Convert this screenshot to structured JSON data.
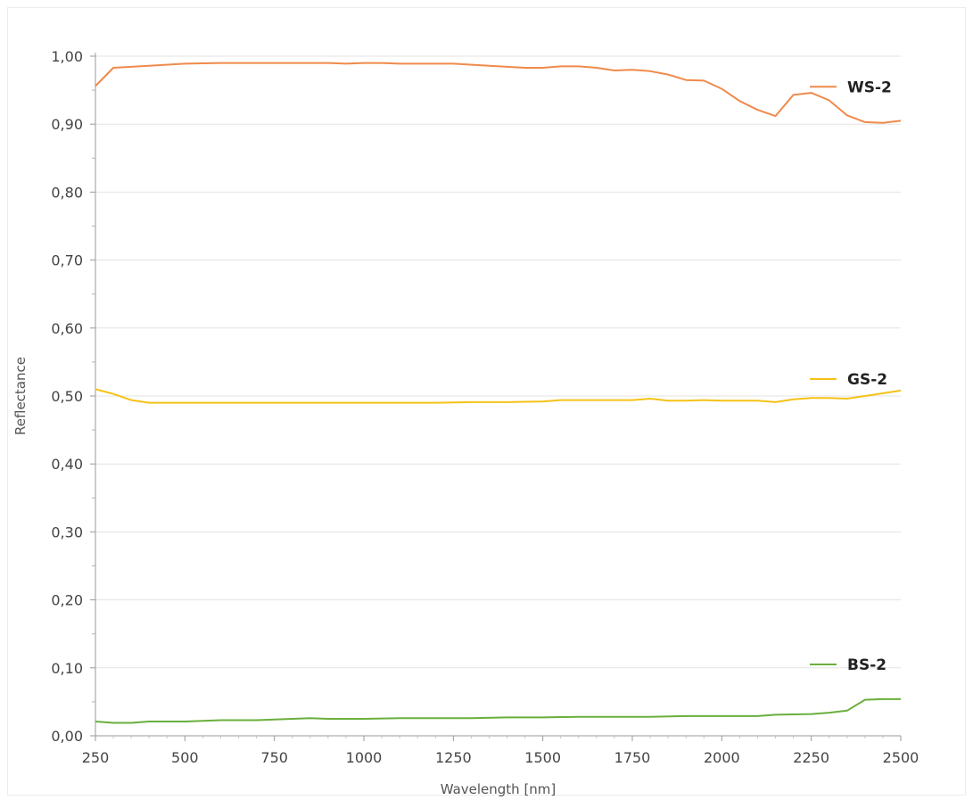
{
  "chart_data": {
    "type": "line",
    "title": "",
    "xlabel": "Wavelength [nm]",
    "ylabel": "Reflectance",
    "xlim": [
      250,
      2500
    ],
    "ylim": [
      0,
      1.0
    ],
    "x_ticks": [
      250,
      500,
      750,
      1000,
      1250,
      1500,
      1750,
      2000,
      2250,
      2500
    ],
    "x_tick_labels": [
      "250",
      "500",
      "750",
      "1000",
      "1250",
      "1500",
      "1750",
      "2000",
      "2250",
      "2500"
    ],
    "y_ticks": [
      0,
      0.1,
      0.2,
      0.3,
      0.4,
      0.5,
      0.6,
      0.7,
      0.8,
      0.9,
      1.0
    ],
    "y_tick_labels": [
      "0,00",
      "0,10",
      "0,20",
      "0,30",
      "0,40",
      "0,50",
      "0,60",
      "0,70",
      "0,80",
      "0,90",
      "1,00"
    ],
    "grid": "horizontal",
    "legend": "inline-right",
    "series": [
      {
        "name": "WS-2",
        "color": "#f08a4b",
        "points": [
          [
            250,
            0.956
          ],
          [
            300,
            0.983
          ],
          [
            400,
            0.986
          ],
          [
            500,
            0.989
          ],
          [
            600,
            0.99
          ],
          [
            700,
            0.99
          ],
          [
            800,
            0.99
          ],
          [
            900,
            0.99
          ],
          [
            950,
            0.989
          ],
          [
            1000,
            0.99
          ],
          [
            1050,
            0.99
          ],
          [
            1100,
            0.989
          ],
          [
            1200,
            0.989
          ],
          [
            1250,
            0.989
          ],
          [
            1350,
            0.986
          ],
          [
            1450,
            0.983
          ],
          [
            1500,
            0.983
          ],
          [
            1550,
            0.985
          ],
          [
            1600,
            0.985
          ],
          [
            1650,
            0.983
          ],
          [
            1700,
            0.979
          ],
          [
            1750,
            0.98
          ],
          [
            1800,
            0.978
          ],
          [
            1850,
            0.973
          ],
          [
            1900,
            0.965
          ],
          [
            1950,
            0.964
          ],
          [
            2000,
            0.952
          ],
          [
            2050,
            0.934
          ],
          [
            2100,
            0.921
          ],
          [
            2150,
            0.912
          ],
          [
            2200,
            0.943
          ],
          [
            2250,
            0.946
          ],
          [
            2300,
            0.935
          ],
          [
            2350,
            0.913
          ],
          [
            2400,
            0.903
          ],
          [
            2450,
            0.902
          ],
          [
            2500,
            0.905
          ]
        ]
      },
      {
        "name": "GS-2",
        "color": "#f5c217",
        "points": [
          [
            250,
            0.51
          ],
          [
            300,
            0.503
          ],
          [
            350,
            0.494
          ],
          [
            400,
            0.49
          ],
          [
            500,
            0.49
          ],
          [
            600,
            0.49
          ],
          [
            800,
            0.49
          ],
          [
            1000,
            0.49
          ],
          [
            1200,
            0.49
          ],
          [
            1300,
            0.491
          ],
          [
            1400,
            0.491
          ],
          [
            1500,
            0.492
          ],
          [
            1550,
            0.494
          ],
          [
            1600,
            0.494
          ],
          [
            1700,
            0.494
          ],
          [
            1750,
            0.494
          ],
          [
            1800,
            0.496
          ],
          [
            1850,
            0.493
          ],
          [
            1900,
            0.493
          ],
          [
            1950,
            0.494
          ],
          [
            2000,
            0.493
          ],
          [
            2100,
            0.493
          ],
          [
            2150,
            0.491
          ],
          [
            2200,
            0.495
          ],
          [
            2250,
            0.497
          ],
          [
            2300,
            0.497
          ],
          [
            2350,
            0.496
          ],
          [
            2400,
            0.5
          ],
          [
            2450,
            0.504
          ],
          [
            2500,
            0.508
          ]
        ]
      },
      {
        "name": "BS-2",
        "color": "#6aaf3d",
        "points": [
          [
            250,
            0.021
          ],
          [
            300,
            0.019
          ],
          [
            350,
            0.019
          ],
          [
            400,
            0.021
          ],
          [
            500,
            0.021
          ],
          [
            600,
            0.023
          ],
          [
            700,
            0.023
          ],
          [
            800,
            0.025
          ],
          [
            850,
            0.026
          ],
          [
            900,
            0.025
          ],
          [
            1000,
            0.025
          ],
          [
            1100,
            0.026
          ],
          [
            1200,
            0.026
          ],
          [
            1300,
            0.026
          ],
          [
            1400,
            0.027
          ],
          [
            1500,
            0.027
          ],
          [
            1600,
            0.028
          ],
          [
            1700,
            0.028
          ],
          [
            1800,
            0.028
          ],
          [
            1900,
            0.029
          ],
          [
            2000,
            0.029
          ],
          [
            2100,
            0.029
          ],
          [
            2150,
            0.031
          ],
          [
            2250,
            0.032
          ],
          [
            2300,
            0.034
          ],
          [
            2350,
            0.037
          ],
          [
            2400,
            0.053
          ],
          [
            2450,
            0.054
          ],
          [
            2500,
            0.054
          ]
        ]
      }
    ]
  }
}
